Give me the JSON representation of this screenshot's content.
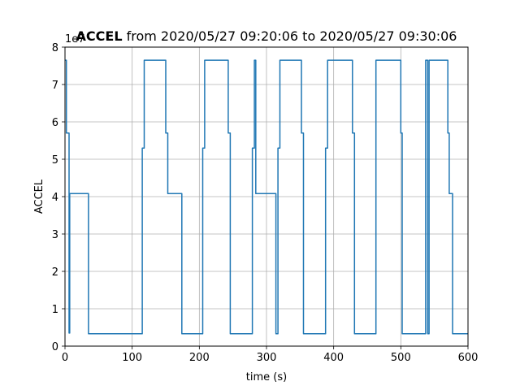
{
  "chart_data": {
    "type": "line",
    "title_bold": "ACCEL",
    "title_rest": " from 2020/05/27 09:20:06 to 2020/05/27 09:30:06",
    "xlabel": "time (s)",
    "ylabel": "ACCEL",
    "offset_label": "1e7",
    "xlim": [
      0,
      600
    ],
    "ylim": [
      0,
      8
    ],
    "xticks": [
      0,
      100,
      200,
      300,
      400,
      500,
      600
    ],
    "yticks": [
      0,
      1,
      2,
      3,
      4,
      5,
      6,
      7,
      8
    ],
    "grid": true,
    "line_color": "#1f77b4",
    "series": [
      {
        "x": [
          0,
          2,
          2,
          3,
          3,
          6,
          6,
          7,
          7,
          35,
          35,
          115,
          115,
          118,
          118,
          150,
          150,
          153,
          153,
          174,
          174,
          205,
          205,
          208,
          208,
          243,
          243,
          246,
          246,
          279,
          279,
          282,
          282,
          284,
          284,
          314,
          314,
          317,
          317,
          320,
          320,
          352,
          352,
          355,
          355,
          388,
          388,
          391,
          391,
          428,
          428,
          431,
          431,
          463,
          463,
          500,
          500,
          502,
          502,
          537,
          537,
          540,
          540,
          542,
          542,
          570,
          570,
          572,
          572,
          577,
          577,
          600
        ],
        "y": [
          7.65,
          7.65,
          5.7,
          5.7,
          5.7,
          5.7,
          0.35,
          0.35,
          4.08,
          4.08,
          0.33,
          0.33,
          5.3,
          5.3,
          7.65,
          7.65,
          5.7,
          5.7,
          4.08,
          4.08,
          0.33,
          0.33,
          5.3,
          5.3,
          7.65,
          7.65,
          5.7,
          5.7,
          0.33,
          0.33,
          5.3,
          5.3,
          7.65,
          7.65,
          4.08,
          4.08,
          0.33,
          0.33,
          5.3,
          5.3,
          7.65,
          7.65,
          5.7,
          5.7,
          0.33,
          0.33,
          5.3,
          5.3,
          7.65,
          7.65,
          5.7,
          5.7,
          0.33,
          0.33,
          7.65,
          7.65,
          5.7,
          5.7,
          0.33,
          0.33,
          7.65,
          7.65,
          0.33,
          0.33,
          7.65,
          7.65,
          5.7,
          5.7,
          4.08,
          4.08,
          0.33,
          0.33
        ]
      }
    ]
  }
}
